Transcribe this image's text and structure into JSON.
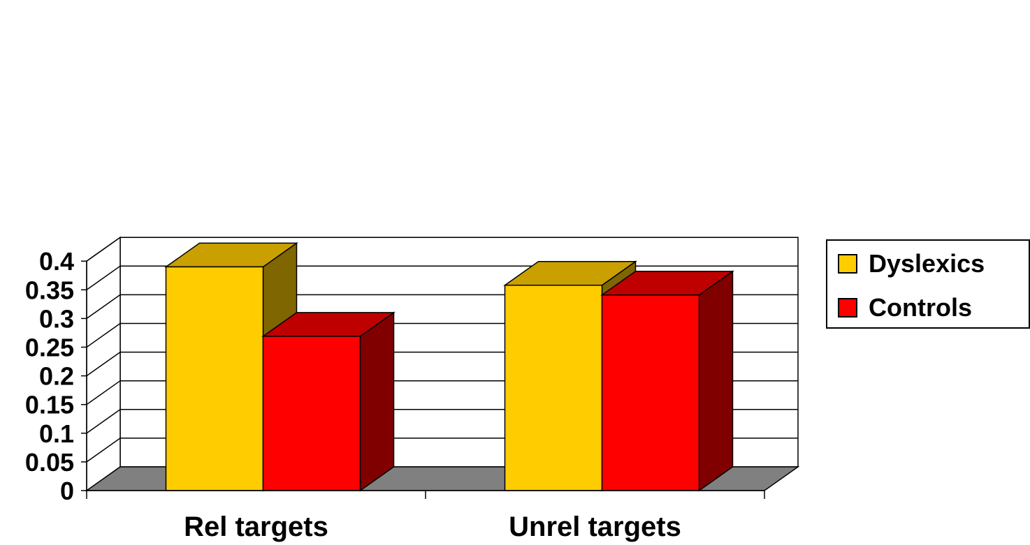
{
  "chart_data": {
    "type": "bar",
    "style": "3d-clustered-column",
    "categories": [
      "Rel targets",
      "Unrel targets"
    ],
    "series": [
      {
        "name": "Dyslexics",
        "values": [
          0.39,
          0.358
        ],
        "color": "#ffcc00",
        "top_color": "#c9a000",
        "side_color": "#806600"
      },
      {
        "name": "Controls",
        "values": [
          0.269,
          0.341
        ],
        "color": "#ff0000",
        "top_color": "#bf0000",
        "side_color": "#800000"
      }
    ],
    "y_ticks": [
      "0",
      "0.05",
      "0.1",
      "0.15",
      "0.2",
      "0.25",
      "0.3",
      "0.35",
      "0.4"
    ],
    "ylim": [
      0,
      0.4
    ],
    "grid": true,
    "floor_color": "#808080",
    "legend_position": "right",
    "title": "",
    "xlabel": "",
    "ylabel": ""
  }
}
